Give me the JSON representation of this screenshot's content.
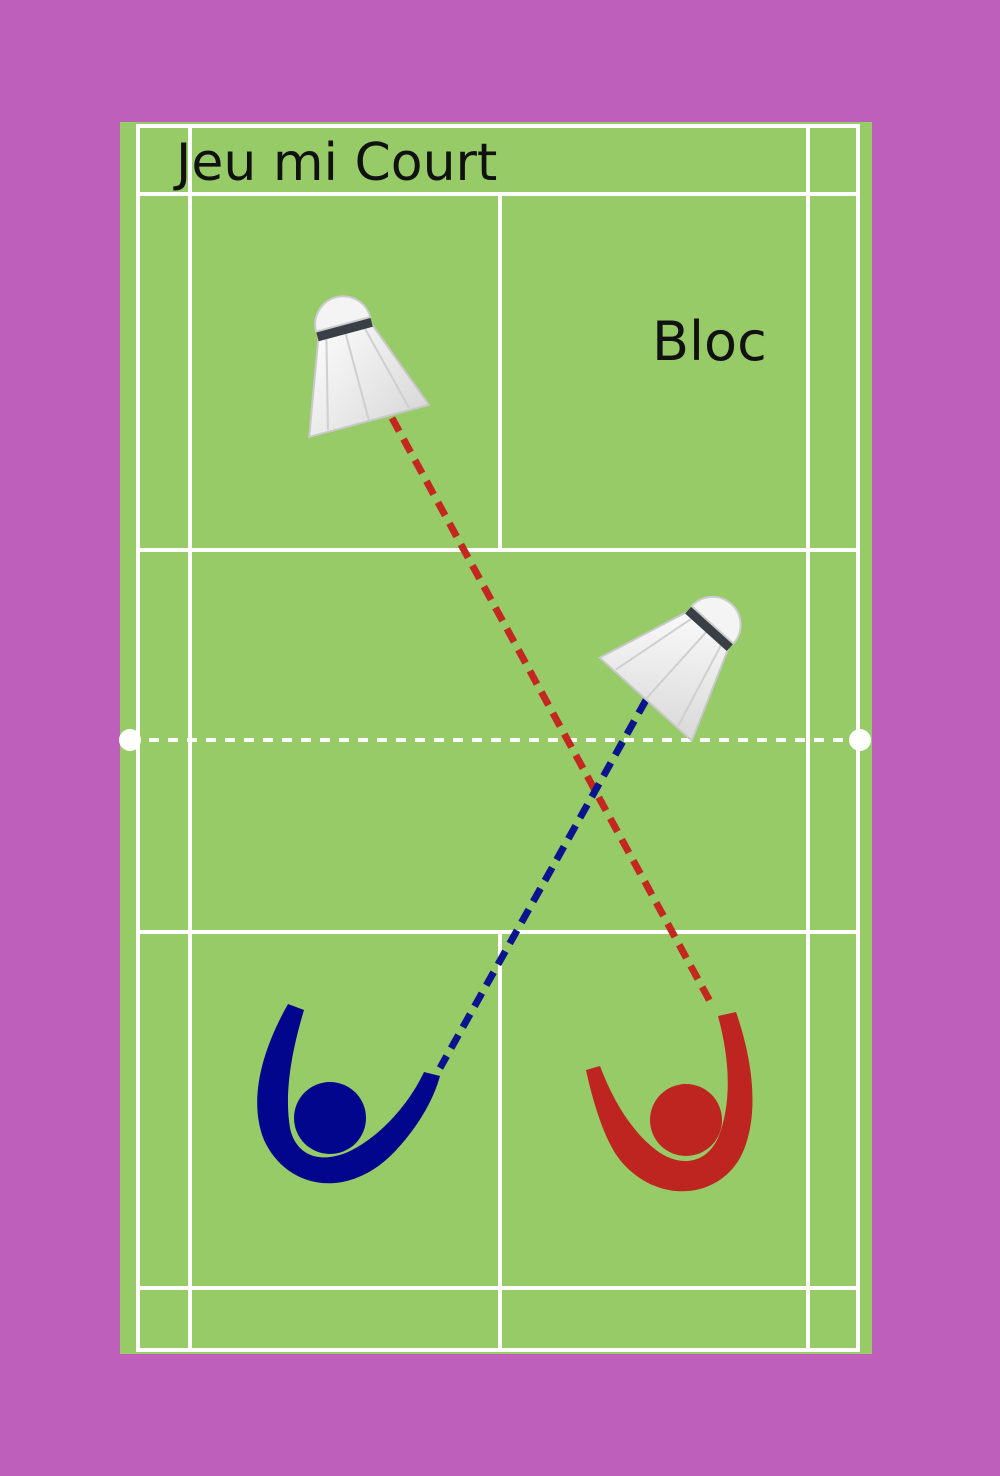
{
  "diagram": {
    "title": "Jeu mi Court",
    "zone_label": "Bloc"
  },
  "colors": {
    "frame": "#bd5fbb",
    "court": "#96cb67",
    "lines": "#ffffff",
    "blue_player": "#01068c",
    "red_player": "#be2420",
    "blue_trajectory": "#0b148e",
    "red_trajectory": "#c3271f",
    "net": "#ffffff"
  },
  "elements": {
    "players": [
      {
        "name": "blue-player",
        "color": "blue"
      },
      {
        "name": "red-player",
        "color": "red"
      }
    ],
    "shuttlecocks": [
      {
        "name": "shuttlecock-top-left"
      },
      {
        "name": "shuttlecock-center-right"
      }
    ],
    "trajectories": [
      {
        "name": "red-trajectory",
        "style": "dashed"
      },
      {
        "name": "blue-trajectory",
        "style": "dashed"
      }
    ]
  }
}
